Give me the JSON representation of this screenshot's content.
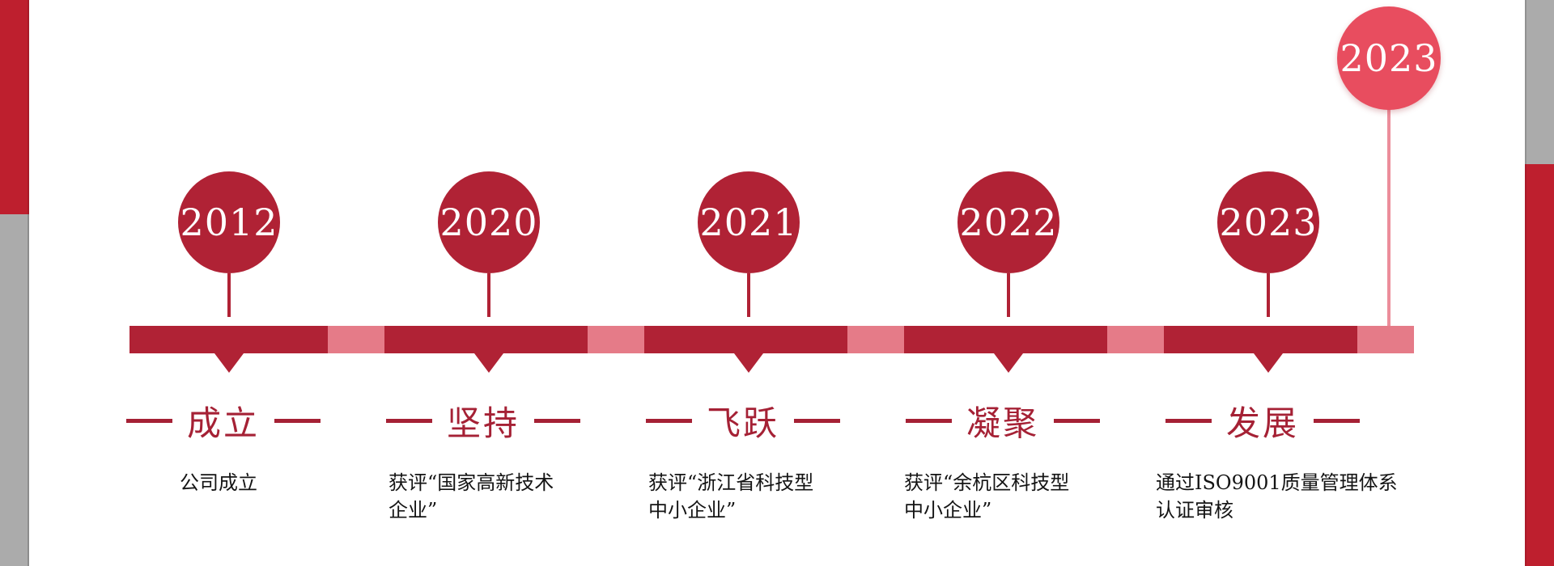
{
  "colors": {
    "dark_red": "#b02235",
    "pink": "#e57b88",
    "label_red": "#a52135",
    "accent_light_red": "#e84d5f",
    "accent_light_red_hi": "#ef6572",
    "stem_pink": "#ec8e9b",
    "side_red": "#be1f2e",
    "side_gray": "#ababab",
    "text_dark": "#141414",
    "year_text": "#ffffff"
  },
  "timeline": {
    "milestones": [
      {
        "year": "2012",
        "label": "成立",
        "desc_lines": [
          "公司成立"
        ]
      },
      {
        "year": "2020",
        "label": "坚持",
        "desc_lines": [
          "获评“国家高新技术",
          "企业”"
        ]
      },
      {
        "year": "2021",
        "label": "飞跃",
        "desc_lines": [
          "获评“浙江省科技型",
          "中小企业”"
        ]
      },
      {
        "year": "2022",
        "label": "凝聚",
        "desc_lines": [
          "获评“余杭区科技型",
          "中小企业”"
        ]
      },
      {
        "year": "2023",
        "label": "发展",
        "desc_lines": [
          "通过ISO9001质量管理体系",
          "认证审核"
        ]
      }
    ],
    "future": {
      "year": "2023"
    }
  }
}
